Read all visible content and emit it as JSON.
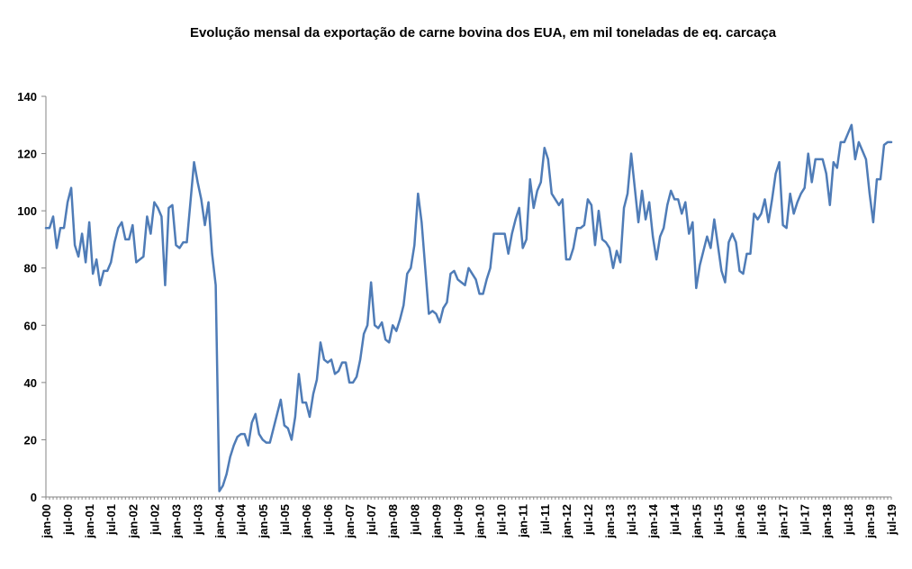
{
  "chart_data": {
    "type": "line",
    "title": "Evolução mensal da exportação de carne bovina dos EUA, em mil toneladas de eq. carcaça",
    "xlabel": "",
    "ylabel": "",
    "ylim": [
      0,
      140
    ],
    "yticks": [
      0,
      20,
      40,
      60,
      80,
      100,
      120,
      140
    ],
    "grid": false,
    "legend": "none",
    "line_color": "#4F7CB7",
    "x_tick_labels": [
      "jan-00",
      "jul-00",
      "jan-01",
      "jul-01",
      "jan-02",
      "jul-02",
      "jan-03",
      "jul-03",
      "jan-04",
      "jul-04",
      "jan-05",
      "jul-05",
      "jan-06",
      "jul-06",
      "jan-07",
      "jul-07",
      "jan-08",
      "jul-08",
      "jan-09",
      "jul-09",
      "jan-10",
      "jul-10",
      "jan-11",
      "jul-11",
      "jan-12",
      "jul-12",
      "jan-13",
      "jul-13",
      "jan-14",
      "jul-14",
      "jan-15",
      "jul-15",
      "jan-16",
      "jul-16",
      "jan-17",
      "jul-17",
      "jan-18",
      "jul-18",
      "jan-19",
      "jul-19"
    ],
    "start_label": "jan-00",
    "series": [
      {
        "values": [
          94,
          94,
          98,
          87,
          94,
          94,
          103,
          108,
          88,
          84,
          92,
          82,
          96,
          78,
          83,
          74,
          79,
          79,
          82,
          89,
          94,
          96,
          90,
          90,
          95,
          82,
          83,
          84,
          98,
          92,
          103,
          101,
          98,
          74,
          101,
          102,
          88,
          87,
          89,
          89,
          103,
          117,
          110,
          104,
          95,
          103,
          85,
          74,
          2,
          4,
          8,
          14,
          18,
          21,
          22,
          22,
          18,
          26,
          29,
          22,
          20,
          19,
          19,
          24,
          29,
          34,
          25,
          24,
          20,
          28,
          43,
          33,
          33,
          28,
          36,
          41,
          54,
          48,
          47,
          48,
          43,
          44,
          47,
          47,
          40,
          40,
          42,
          48,
          57,
          60,
          75,
          60,
          59,
          61,
          55,
          54,
          60,
          58,
          62,
          67,
          78,
          80,
          88,
          106,
          96,
          80,
          64,
          65,
          64,
          61,
          66,
          68,
          78,
          79,
          76,
          75,
          74,
          80,
          78,
          76,
          71,
          71,
          76,
          80,
          92,
          92,
          92,
          92,
          85,
          92,
          97,
          101,
          87,
          90,
          111,
          101,
          107,
          110,
          122,
          118,
          106,
          104,
          102,
          104,
          83,
          83,
          87,
          94,
          94,
          95,
          104,
          102,
          88,
          100,
          90,
          89,
          87,
          80,
          86,
          82,
          101,
          106,
          120,
          108,
          96,
          107,
          97,
          103,
          91,
          83,
          91,
          94,
          102,
          107,
          104,
          104,
          99,
          103,
          92,
          96,
          73,
          81,
          86,
          91,
          87,
          97,
          88,
          79,
          75,
          89,
          92,
          89,
          79,
          78,
          85,
          85,
          99,
          97,
          99,
          104,
          96,
          104,
          113,
          117,
          95,
          94,
          106,
          99,
          103,
          106,
          108,
          120,
          110,
          118,
          118,
          118,
          113,
          102,
          117,
          115,
          124,
          124,
          127,
          130,
          118,
          124,
          121,
          118,
          106,
          96,
          111,
          111,
          123,
          124,
          124
        ]
      }
    ]
  }
}
